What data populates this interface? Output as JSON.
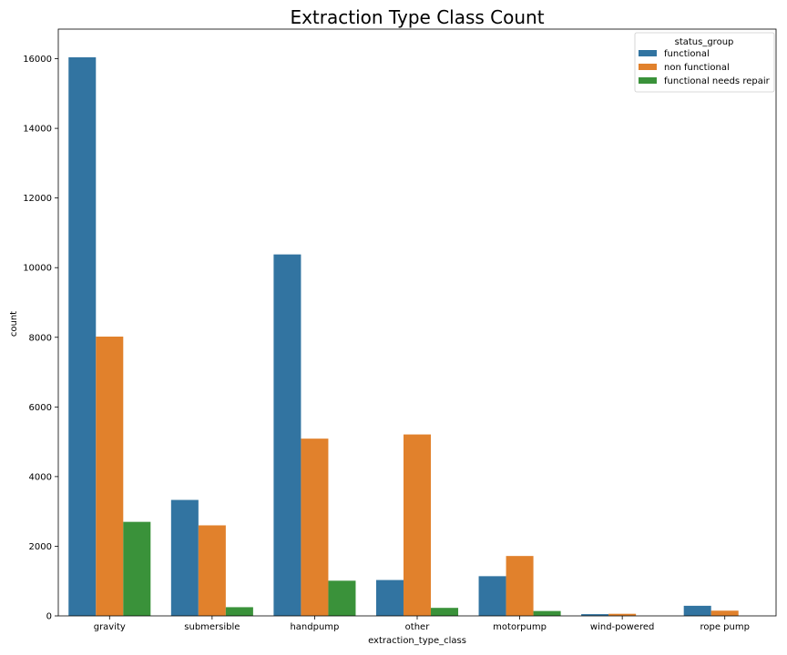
{
  "chart_data": {
    "type": "bar",
    "title": "Extraction Type Class Count",
    "xlabel": "extraction_type_class",
    "ylabel": "count",
    "categories": [
      "gravity",
      "submersible",
      "handpump",
      "other",
      "motorpump",
      "wind-powered",
      "rope pump"
    ],
    "series": [
      {
        "name": "functional",
        "color": "#3274a1",
        "values": [
          16040,
          3330,
          10380,
          1030,
          1140,
          50,
          290
        ]
      },
      {
        "name": "non functional",
        "color": "#e1812c",
        "values": [
          8020,
          2600,
          5090,
          5210,
          1720,
          60,
          150
        ]
      },
      {
        "name": "functional needs repair",
        "color": "#3a923a",
        "values": [
          2700,
          250,
          1010,
          230,
          140,
          0,
          0
        ]
      }
    ],
    "ylim": [
      0,
      16850
    ],
    "yticks": [
      0,
      2000,
      4000,
      6000,
      8000,
      10000,
      12000,
      14000,
      16000
    ],
    "grid": false,
    "legend": {
      "title": "status_group",
      "placement": "top-right"
    }
  }
}
